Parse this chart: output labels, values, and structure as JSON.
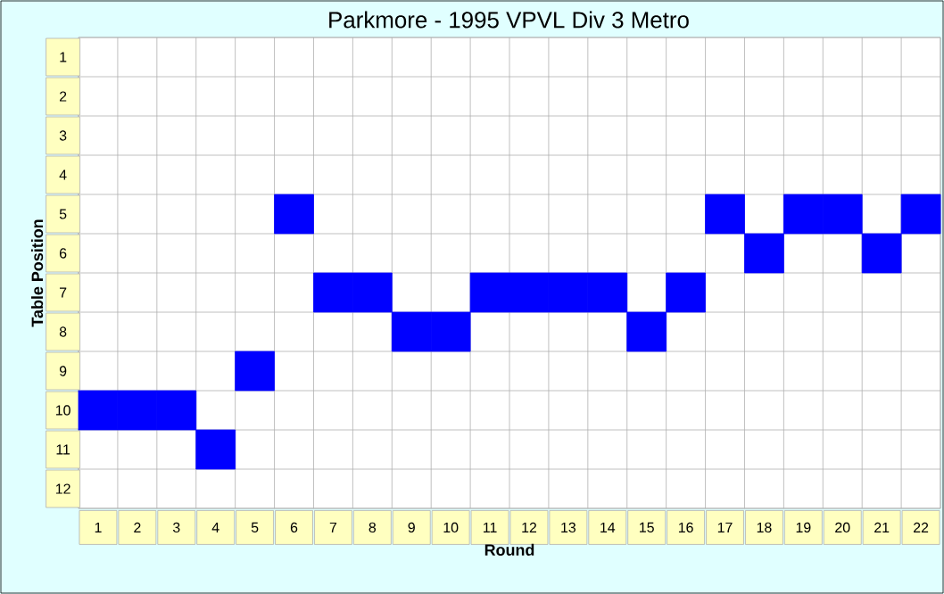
{
  "chart_data": {
    "type": "scatter",
    "title": "Parkmore - 1995 VPVL Div 3 Metro",
    "xlabel": "Round",
    "ylabel": "Table Position",
    "categories": [
      "1",
      "2",
      "3",
      "4",
      "5",
      "6",
      "7",
      "8",
      "9",
      "10",
      "11",
      "12",
      "13",
      "14",
      "15",
      "16",
      "17",
      "18",
      "19",
      "20",
      "21",
      "22"
    ],
    "values": [
      10,
      10,
      10,
      11,
      9,
      5,
      7,
      7,
      8,
      8,
      7,
      7,
      7,
      7,
      8,
      7,
      5,
      6,
      5,
      5,
      6,
      5
    ],
    "color": "#0000ff",
    "marker": "square",
    "grid": true,
    "ylim": [
      12.5,
      0.5
    ],
    "yticks": [
      1,
      2,
      3,
      4,
      5,
      6,
      7,
      8,
      9,
      10,
      11,
      12
    ]
  }
}
